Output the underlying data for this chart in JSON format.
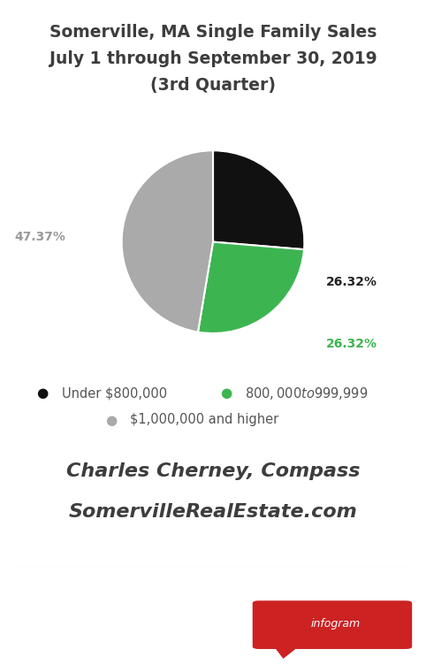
{
  "title_line1": "Somerville, MA Single Family Sales",
  "title_line2": "July 1 through September 30, 2019",
  "title_line3": "(3rd Quarter)",
  "slices": [
    26.32,
    26.32,
    47.37
  ],
  "slice_labels": [
    "26.32%",
    "26.32%",
    "47.37%"
  ],
  "slice_colors": [
    "#111111",
    "#3cb550",
    "#aaaaaa"
  ],
  "legend_labels": [
    "Under $800,000",
    "$800,000 to $999,999",
    "$1,000,000 and higher"
  ],
  "credit_line1": "Charles Cherney, Compass",
  "credit_line2": "SomervilleRealEstate.com",
  "background_color": "#ffffff",
  "title_fontsize": 13.5,
  "label_fontsize": 10,
  "legend_fontsize": 10.5,
  "credit_fontsize": 16,
  "infogram_bg": "#cc2222",
  "infogram_text": "infogram"
}
